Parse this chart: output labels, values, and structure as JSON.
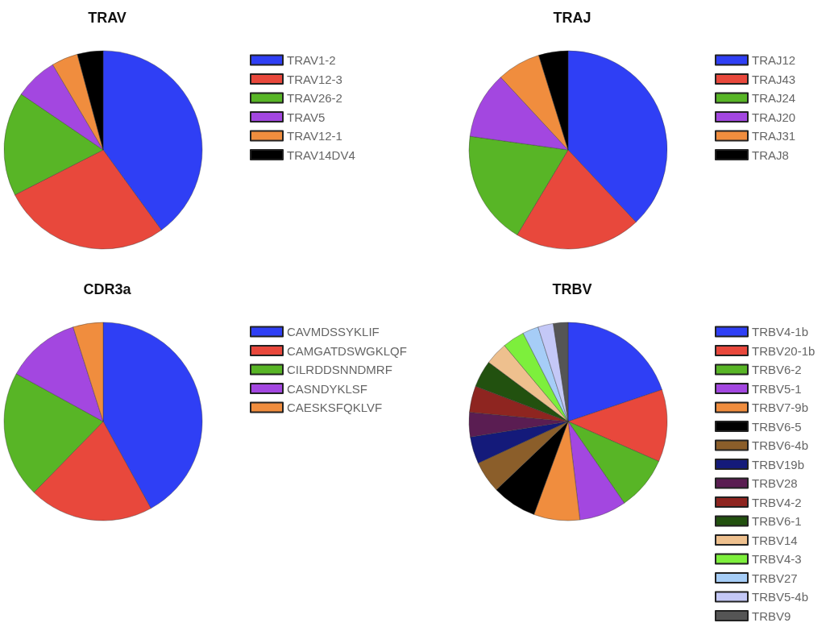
{
  "chart_data": [
    {
      "type": "pie",
      "title": "TRAV",
      "legend": "right",
      "categories": [
        "TRAV1-2",
        "TRAV12-3",
        "TRAV26-2",
        "TRAV5",
        "TRAV12-1",
        "TRAV14DV4"
      ],
      "values": [
        40,
        27.5,
        17,
        7,
        4.3,
        4.2
      ],
      "colors": [
        "#2f3ff5",
        "#e8483c",
        "#58b526",
        "#a347e0",
        "#f08d3e",
        "#000000"
      ]
    },
    {
      "type": "pie",
      "title": "TRAJ",
      "legend": "right",
      "categories": [
        "TRAJ12",
        "TRAJ43",
        "TRAJ24",
        "TRAJ20",
        "TRAJ31",
        "TRAJ8"
      ],
      "values": [
        38,
        20.6,
        18.6,
        10.9,
        7.1,
        4.8
      ],
      "colors": [
        "#2f3ff5",
        "#e8483c",
        "#58b526",
        "#a347e0",
        "#f08d3e",
        "#000000"
      ]
    },
    {
      "type": "pie",
      "title": "CDR3a",
      "legend": "right",
      "categories": [
        "CAVMDSSYKLIF",
        "CAMGATDSWGKLQF",
        "CILRDDSNNDMRF",
        "CASNDYKLSF",
        "CAESKSFQKLVF"
      ],
      "values": [
        42,
        20.3,
        20.7,
        12.1,
        4.9
      ],
      "colors": [
        "#2f3ff5",
        "#e8483c",
        "#58b526",
        "#a347e0",
        "#f08d3e"
      ]
    },
    {
      "type": "pie",
      "title": "TRBV",
      "legend": "right",
      "categories": [
        "TRBV4-1b",
        "TRBV20-1b",
        "TRBV6-2",
        "TRBV5-1",
        "TRBV7-9b",
        "TRBV6-5",
        "TRBV6-4b",
        "TRBV19b",
        "TRBV28",
        "TRBV4-2",
        "TRBV6-1",
        "TRBV14",
        "TRBV4-3",
        "TRBV27",
        "TRBV5-4b",
        "TRBV9"
      ],
      "values": [
        19.8,
        11.8,
        8.8,
        7.7,
        7.5,
        7.3,
        5.2,
        4.4,
        4.0,
        4.3,
        4.4,
        3.7,
        3.6,
        2.6,
        2.5,
        2.4
      ],
      "colors": [
        "#2f3ff5",
        "#e8483c",
        "#58b526",
        "#a347e0",
        "#f08d3e",
        "#000000",
        "#8b5e2a",
        "#141a7a",
        "#5a1d52",
        "#8e2520",
        "#22510f",
        "#eec08e",
        "#7def3c",
        "#a6cdf7",
        "#c4c8f7",
        "#555555"
      ]
    }
  ]
}
